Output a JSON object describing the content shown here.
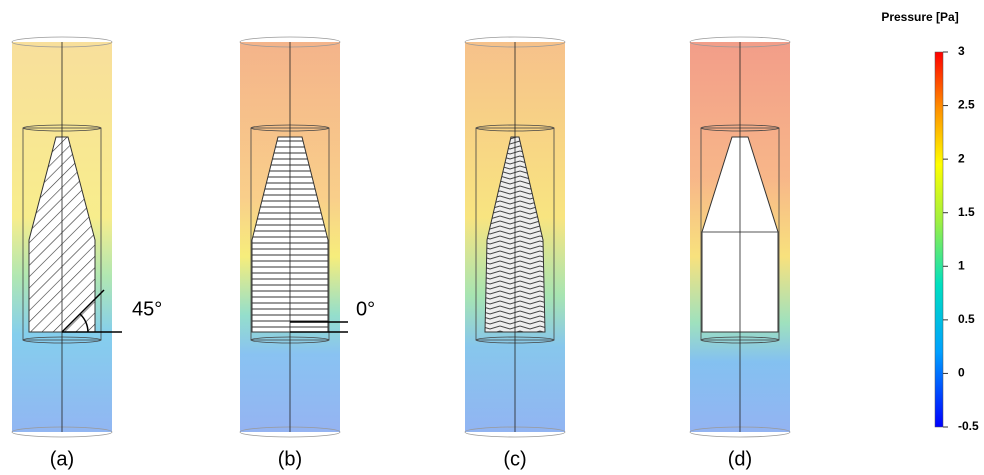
{
  "panels": [
    {
      "label": "(a)",
      "angle": "45°"
    },
    {
      "label": "(b)",
      "angle": "0°"
    },
    {
      "label": "(c)"
    },
    {
      "label": "(d)"
    }
  ],
  "colorbar": {
    "title": "Pressure [Pa]",
    "range": [
      -0.5,
      3
    ],
    "ticks": [
      3,
      2.5,
      2,
      1.5,
      1,
      0.5,
      0,
      -0.5
    ]
  }
}
